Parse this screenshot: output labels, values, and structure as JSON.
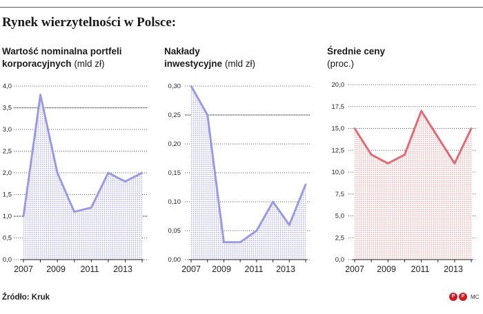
{
  "title": "Rynek wierzytelności w Polsce:",
  "source": "Źródło: Kruk",
  "credit": "MC",
  "logo_text": "PAP",
  "colors": {
    "purple": "#9a9ae4",
    "purple_fill": "#c6c6f2",
    "red": "#e06b74",
    "red_fill": "#f1b3b8"
  },
  "panels": [
    {
      "title_bold": "Wartość nominalna portfeli korporacyjnych",
      "title_line1": "Wartość nominalna portfeli",
      "title_line2_bold": "korporacyjnych",
      "unit": "(mld zł)"
    },
    {
      "title_line1": "Nakłady",
      "title_line2_bold": "inwestycyjne",
      "unit": "(mld zł)"
    },
    {
      "title_line1": "Średnie ceny",
      "title_line2_bold": "",
      "unit": "(proc.)"
    }
  ],
  "chart_data": [
    {
      "type": "area",
      "title": "Wartość nominalna portfeli korporacyjnych (mld zł)",
      "x": [
        2007,
        2008,
        2009,
        2010,
        2011,
        2012,
        2013,
        2014
      ],
      "values": [
        1.0,
        3.8,
        2.0,
        1.1,
        1.2,
        2.0,
        1.8,
        2.0
      ],
      "x_tick_labels": [
        "2007",
        "2009",
        "2011",
        "2013"
      ],
      "y_tick_labels": [
        "0,0",
        "0,5",
        "1,0",
        "1,5",
        "2,0",
        "2,5",
        "3,0",
        "3,5",
        "4,0"
      ],
      "ylim": [
        0,
        4
      ],
      "color": "purple"
    },
    {
      "type": "area",
      "title": "Nakłady inwestycyjne (mld zł)",
      "x": [
        2007,
        2008,
        2009,
        2010,
        2011,
        2012,
        2013,
        2014
      ],
      "values": [
        0.3,
        0.25,
        0.03,
        0.03,
        0.05,
        0.1,
        0.06,
        0.13
      ],
      "x_tick_labels": [
        "2007",
        "2009",
        "2011",
        "2013"
      ],
      "y_tick_labels": [
        "0,00",
        "0,05",
        "0,10",
        "0,15",
        "0,20",
        "0,25",
        "0,30"
      ],
      "ylim": [
        0,
        0.3
      ],
      "color": "purple"
    },
    {
      "type": "area",
      "title": "Średnie ceny (proc.)",
      "x": [
        2007,
        2008,
        2009,
        2010,
        2011,
        2012,
        2013,
        2014
      ],
      "values": [
        15.0,
        12.0,
        11.0,
        12.0,
        17.0,
        14.0,
        11.0,
        15.0
      ],
      "x_tick_labels": [
        "2007",
        "2009",
        "2011",
        "2013"
      ],
      "y_tick_labels": [
        "0,0",
        "2,5",
        "5,0",
        "7,5",
        "10,0",
        "12,5",
        "15,0",
        "17,5",
        "20,0"
      ],
      "ylim": [
        0,
        20
      ],
      "color": "red"
    }
  ]
}
